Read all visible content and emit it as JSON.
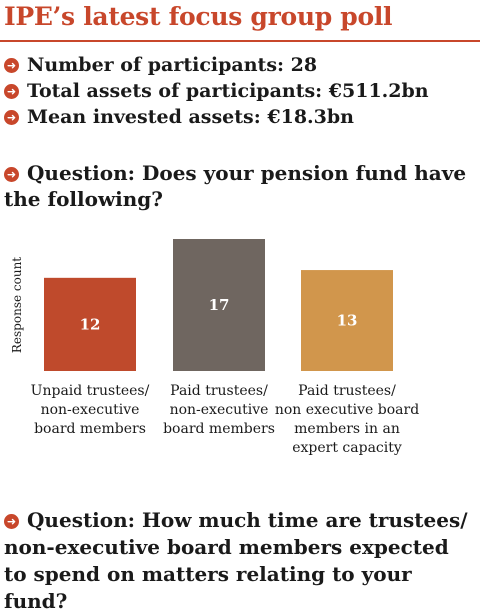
{
  "title": "IPE’s latest focus group poll",
  "stats": [
    {
      "label": "Number of participants: 28"
    },
    {
      "label": "Total assets of participants: €511.2bn"
    },
    {
      "label": "Mean invested assets: €18.3bn"
    }
  ],
  "question1": "Question: Does your pension fund have the following?",
  "question2": "Question: How much time are trustees/ non-executive board members expected to spend on matters relating to your fund?",
  "chart_data": {
    "type": "bar",
    "ylabel": "Response count",
    "categories": [
      [
        "Unpaid trustees/",
        "non-executive",
        "board members"
      ],
      [
        "Paid trustees/",
        "non-executive",
        "board members"
      ],
      [
        "Paid trustees/",
        "non executive board",
        "members in an",
        "expert capacity"
      ]
    ],
    "values": [
      12,
      17,
      13
    ],
    "colors": [
      "#bf4a2c",
      "#6f6660",
      "#d1964c"
    ],
    "ylim": [
      0,
      17
    ],
    "grid": false
  },
  "colors": {
    "accent": "#c8472b"
  }
}
